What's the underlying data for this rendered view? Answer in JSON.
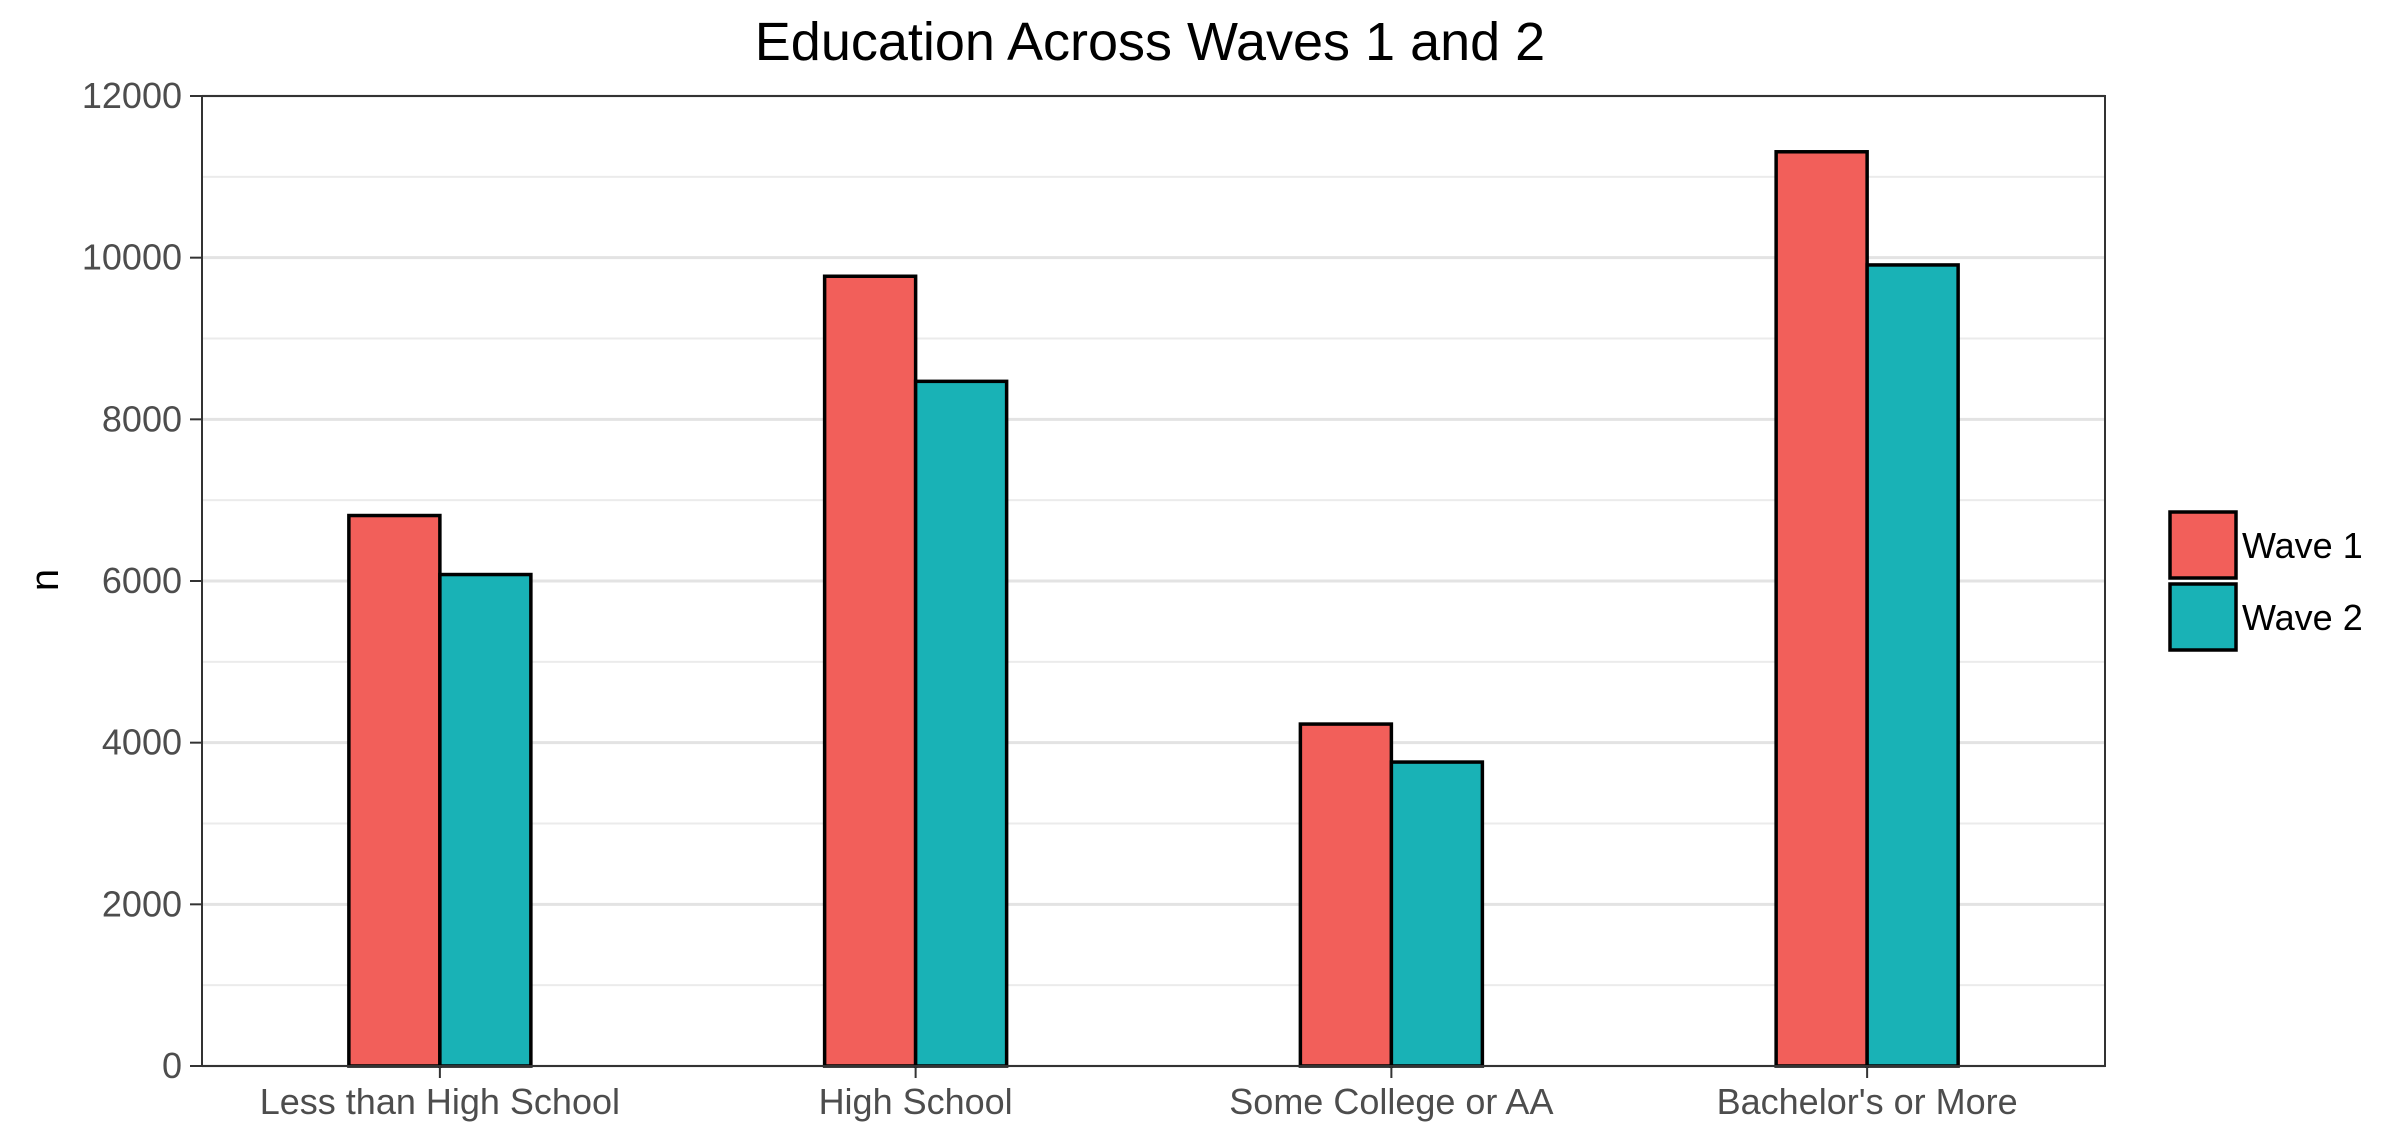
{
  "chart_data": {
    "type": "bar",
    "title": "Education Across Waves 1 and 2",
    "xlabel": "",
    "ylabel": "n",
    "categories": [
      "Less than High School",
      "High School",
      "Some College or AA",
      "Bachelor's or More"
    ],
    "series": [
      {
        "name": "Wave 1",
        "color": "#F25F5A",
        "values": [
          6810,
          9770,
          4230,
          11310
        ]
      },
      {
        "name": "Wave 2",
        "color": "#19B2B6",
        "values": [
          6080,
          8470,
          3760,
          9910
        ]
      }
    ],
    "ylim": [
      0,
      12000
    ],
    "yticks": [
      "0",
      "2000",
      "4000",
      "6000",
      "8000",
      "10000",
      "12000"
    ],
    "grid": true,
    "legend_position": "right"
  }
}
